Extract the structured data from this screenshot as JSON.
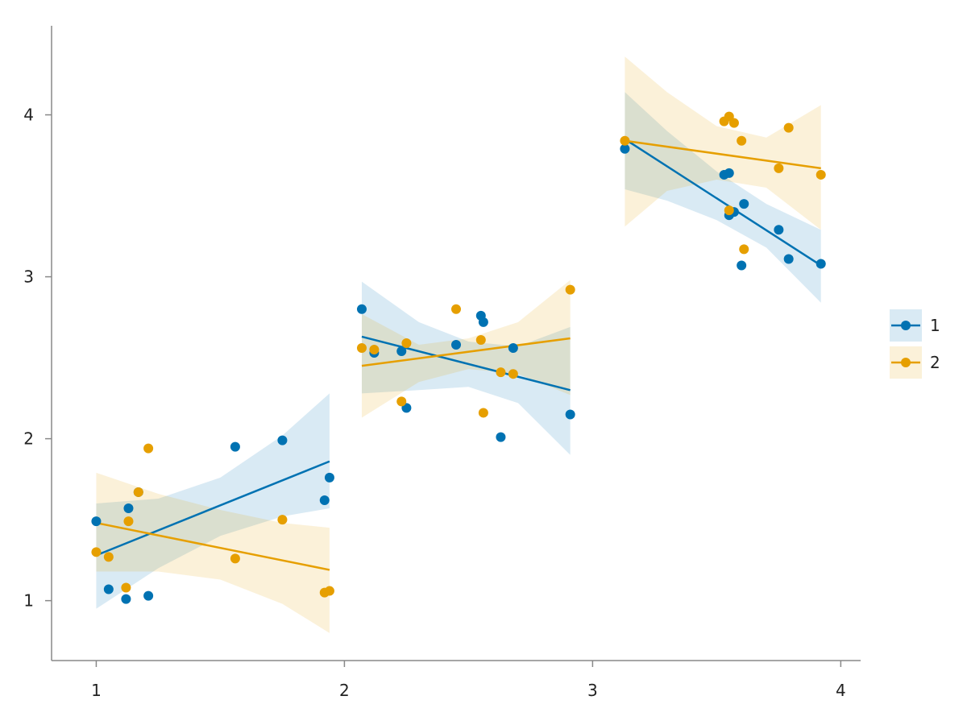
{
  "chart_data": {
    "type": "scatter",
    "title": "",
    "xlabel": "",
    "ylabel": "",
    "xlim": [
      0.82,
      4.08
    ],
    "ylim": [
      0.63,
      4.55
    ],
    "xticks": [
      1,
      2,
      3,
      4
    ],
    "yticks": [
      1,
      2,
      3,
      4
    ],
    "xtick_labels": [
      "1",
      "2",
      "3",
      "4"
    ],
    "ytick_labels": [
      "1",
      "2",
      "3",
      "4"
    ],
    "grid": false,
    "legend_position": "right",
    "colors": {
      "1": "#0072B2",
      "2": "#E69F00"
    },
    "series": [
      {
        "name": "1",
        "color": "#0072B2",
        "points": [
          {
            "x": 1.0,
            "y": 1.49
          },
          {
            "x": 1.05,
            "y": 1.07
          },
          {
            "x": 1.12,
            "y": 1.01
          },
          {
            "x": 1.13,
            "y": 1.57
          },
          {
            "x": 1.17,
            "y": 1.67
          },
          {
            "x": 1.21,
            "y": 1.03
          },
          {
            "x": 1.56,
            "y": 1.95
          },
          {
            "x": 1.75,
            "y": 1.99
          },
          {
            "x": 1.92,
            "y": 1.62
          },
          {
            "x": 1.94,
            "y": 1.76
          },
          {
            "x": 2.07,
            "y": 2.8
          },
          {
            "x": 2.12,
            "y": 2.53
          },
          {
            "x": 2.23,
            "y": 2.54
          },
          {
            "x": 2.25,
            "y": 2.19
          },
          {
            "x": 2.45,
            "y": 2.58
          },
          {
            "x": 2.55,
            "y": 2.76
          },
          {
            "x": 2.56,
            "y": 2.72
          },
          {
            "x": 2.63,
            "y": 2.01
          },
          {
            "x": 2.68,
            "y": 2.56
          },
          {
            "x": 2.91,
            "y": 2.15
          },
          {
            "x": 3.13,
            "y": 3.79
          },
          {
            "x": 3.53,
            "y": 3.63
          },
          {
            "x": 3.55,
            "y": 3.64
          },
          {
            "x": 3.55,
            "y": 3.38
          },
          {
            "x": 3.57,
            "y": 3.4
          },
          {
            "x": 3.6,
            "y": 3.07
          },
          {
            "x": 3.61,
            "y": 3.45
          },
          {
            "x": 3.75,
            "y": 3.29
          },
          {
            "x": 3.79,
            "y": 3.11
          },
          {
            "x": 3.92,
            "y": 3.08
          }
        ],
        "fits": [
          {
            "x0": 1.0,
            "y0": 1.28,
            "x1": 1.94,
            "y1": 1.86,
            "band_x": [
              1.0,
              1.25,
              1.5,
              1.75,
              1.94
            ],
            "band_lo": [
              0.95,
              1.2,
              1.4,
              1.52,
              1.57
            ],
            "band_hi": [
              1.6,
              1.63,
              1.76,
              2.02,
              2.28
            ]
          },
          {
            "x0": 2.07,
            "y0": 2.63,
            "x1": 2.91,
            "y1": 2.3,
            "band_x": [
              2.07,
              2.3,
              2.5,
              2.7,
              2.91
            ],
            "band_lo": [
              2.28,
              2.3,
              2.32,
              2.22,
              1.9
            ],
            "band_hi": [
              2.97,
              2.72,
              2.6,
              2.57,
              2.69
            ]
          },
          {
            "x0": 3.13,
            "y0": 3.85,
            "x1": 3.92,
            "y1": 3.07,
            "band_x": [
              3.13,
              3.3,
              3.5,
              3.7,
              3.92
            ],
            "band_lo": [
              3.54,
              3.47,
              3.35,
              3.18,
              2.84
            ],
            "band_hi": [
              4.14,
              3.9,
              3.65,
              3.45,
              3.29
            ]
          }
        ]
      },
      {
        "name": "2",
        "color": "#E69F00",
        "points": [
          {
            "x": 1.0,
            "y": 1.3
          },
          {
            "x": 1.05,
            "y": 1.27
          },
          {
            "x": 1.12,
            "y": 1.08
          },
          {
            "x": 1.13,
            "y": 1.49
          },
          {
            "x": 1.17,
            "y": 1.67
          },
          {
            "x": 1.21,
            "y": 1.94
          },
          {
            "x": 1.56,
            "y": 1.26
          },
          {
            "x": 1.75,
            "y": 1.5
          },
          {
            "x": 1.92,
            "y": 1.05
          },
          {
            "x": 1.94,
            "y": 1.06
          },
          {
            "x": 2.07,
            "y": 2.56
          },
          {
            "x": 2.12,
            "y": 2.55
          },
          {
            "x": 2.23,
            "y": 2.23
          },
          {
            "x": 2.25,
            "y": 2.59
          },
          {
            "x": 2.45,
            "y": 2.8
          },
          {
            "x": 2.55,
            "y": 2.61
          },
          {
            "x": 2.56,
            "y": 2.16
          },
          {
            "x": 2.63,
            "y": 2.41
          },
          {
            "x": 2.68,
            "y": 2.4
          },
          {
            "x": 2.91,
            "y": 2.92
          },
          {
            "x": 3.13,
            "y": 3.84
          },
          {
            "x": 3.53,
            "y": 3.96
          },
          {
            "x": 3.55,
            "y": 3.99
          },
          {
            "x": 3.55,
            "y": 3.41
          },
          {
            "x": 3.57,
            "y": 3.95
          },
          {
            "x": 3.6,
            "y": 3.84
          },
          {
            "x": 3.61,
            "y": 3.17
          },
          {
            "x": 3.75,
            "y": 3.67
          },
          {
            "x": 3.79,
            "y": 3.92
          },
          {
            "x": 3.92,
            "y": 3.63
          }
        ],
        "fits": [
          {
            "x0": 1.0,
            "y0": 1.48,
            "x1": 1.94,
            "y1": 1.19,
            "band_x": [
              1.0,
              1.25,
              1.5,
              1.75,
              1.94
            ],
            "band_lo": [
              1.18,
              1.18,
              1.13,
              0.98,
              0.8
            ],
            "band_hi": [
              1.79,
              1.66,
              1.56,
              1.48,
              1.45
            ]
          },
          {
            "x0": 2.07,
            "y0": 2.45,
            "x1": 2.91,
            "y1": 2.62,
            "band_x": [
              2.07,
              2.3,
              2.5,
              2.7,
              2.91
            ],
            "band_lo": [
              2.13,
              2.35,
              2.43,
              2.4,
              2.27
            ],
            "band_hi": [
              2.77,
              2.58,
              2.62,
              2.72,
              2.98
            ]
          },
          {
            "x0": 3.13,
            "y0": 3.84,
            "x1": 3.92,
            "y1": 3.67,
            "band_x": [
              3.13,
              3.3,
              3.5,
              3.7,
              3.92
            ],
            "band_lo": [
              3.31,
              3.53,
              3.6,
              3.55,
              3.29
            ],
            "band_hi": [
              4.36,
              4.14,
              3.93,
              3.86,
              4.06
            ]
          }
        ]
      }
    ]
  }
}
